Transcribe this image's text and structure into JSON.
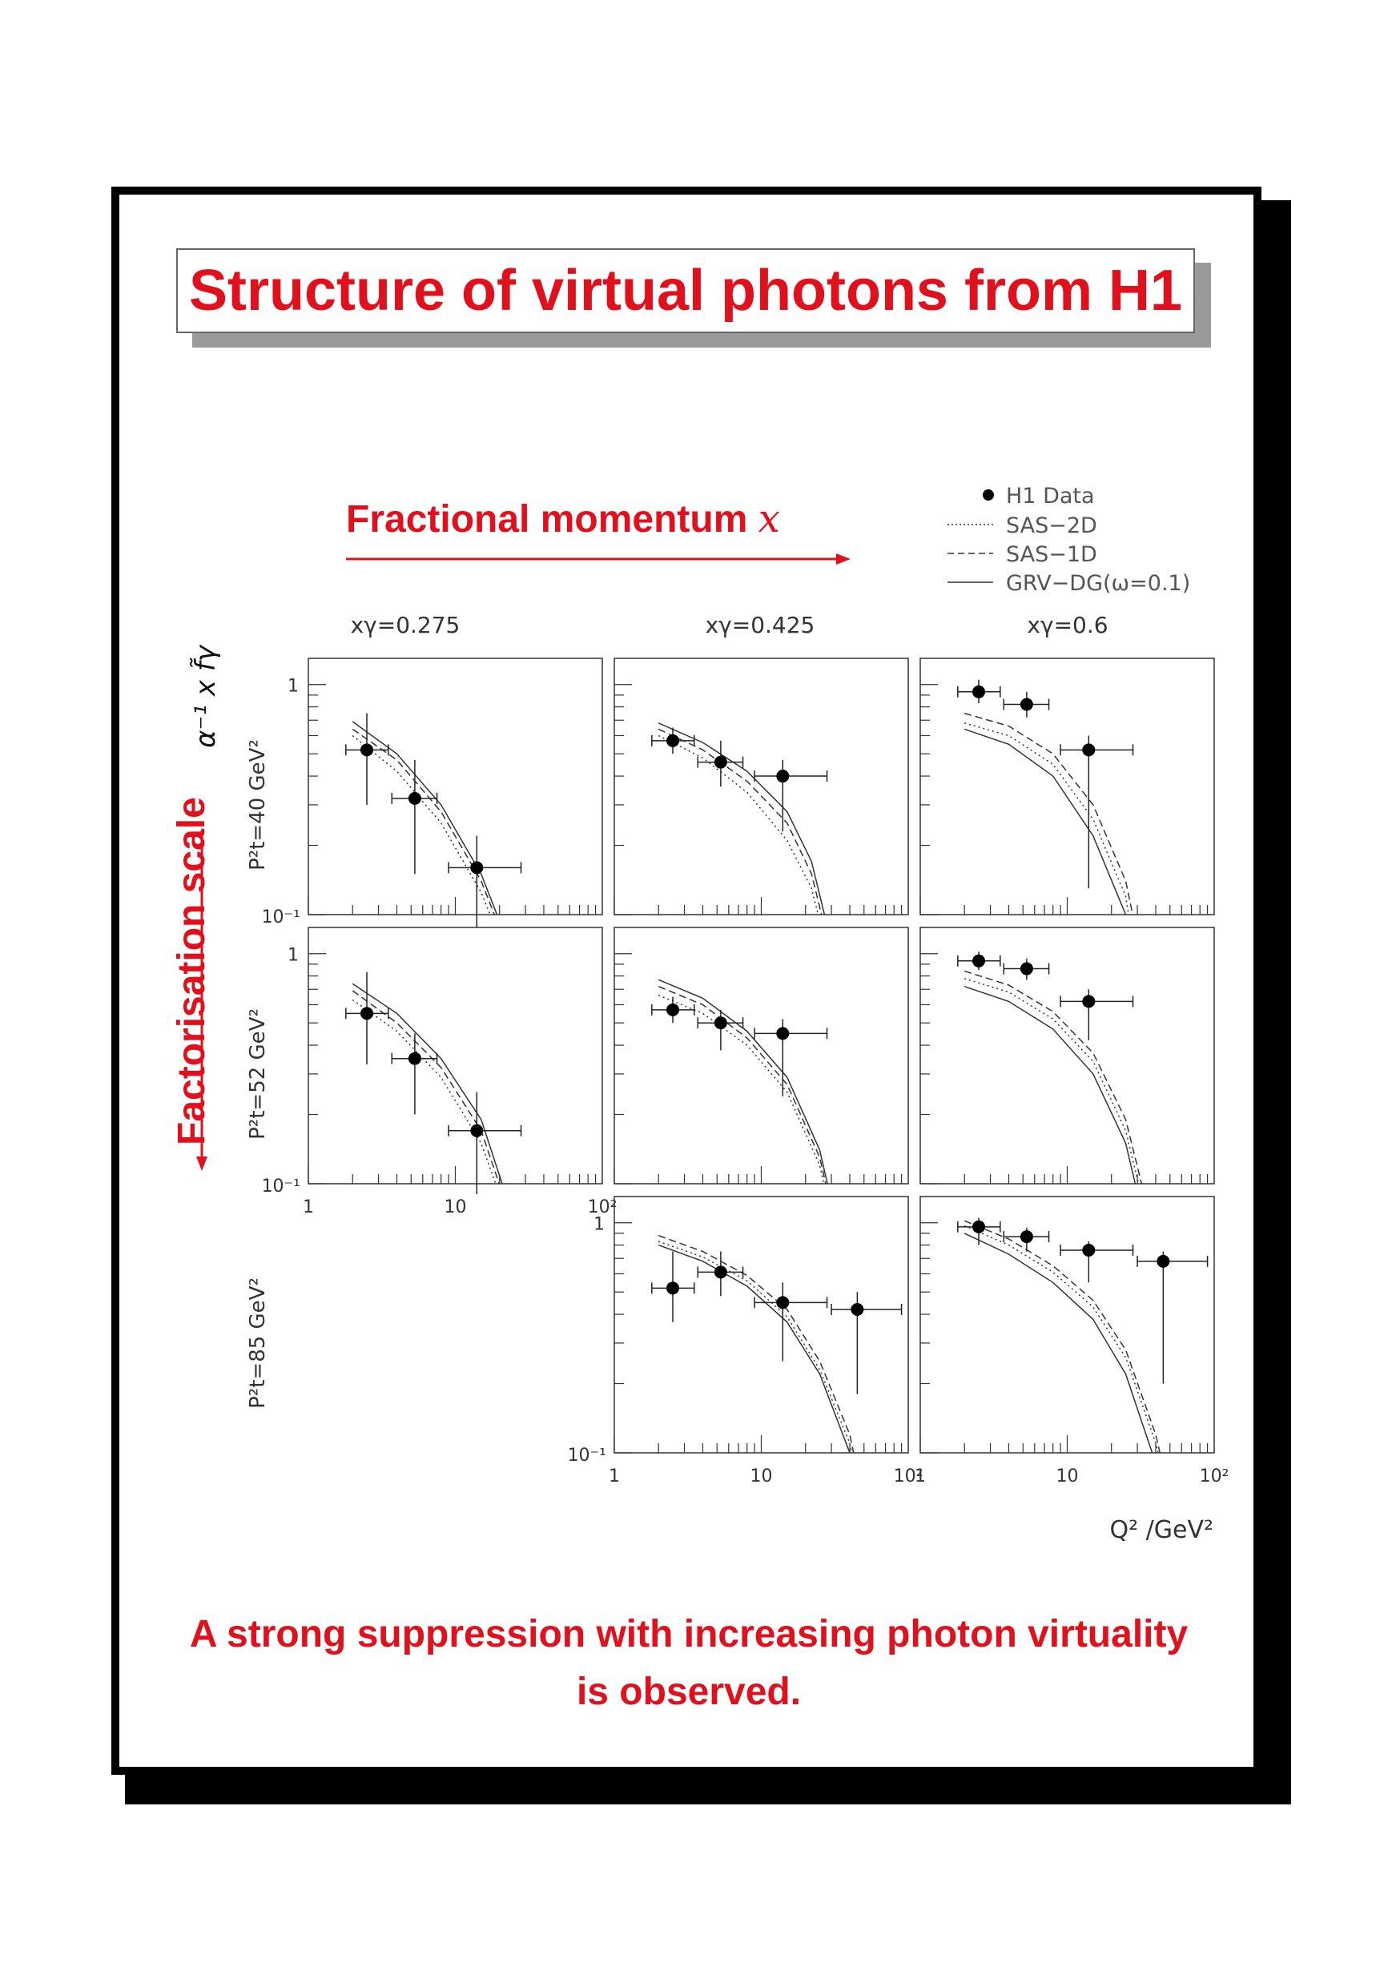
{
  "title": "Structure of virtual photons from H1",
  "x_direction_label": "Fractional momentum",
  "x_direction_symbol": "x",
  "y_direction_label": "Factorisation scale",
  "conclusion_line1": "A strong suppression with increasing photon virtuality",
  "conclusion_line2": "is observed.",
  "colors": {
    "accent": "#e0101c",
    "shadow": "#000000",
    "title_shadow": "#9a9a9a"
  },
  "chart_data": {
    "type": "scatter",
    "ylabel": "α⁻¹ x f̃γ",
    "xlabel": "Q² /GeV²",
    "x_scale": "log",
    "y_scale": "log",
    "xlim": [
      1,
      100
    ],
    "ylim": [
      0.1,
      1.3
    ],
    "x_tick_labels": [
      "1",
      "10",
      "10²"
    ],
    "y_tick_labels": [
      "1",
      "10⁻¹"
    ],
    "legend": {
      "position": "top-right",
      "entries": [
        {
          "label": "H1 Data",
          "style": "marker"
        },
        {
          "label": "SAS−2D",
          "style": "dotted"
        },
        {
          "label": "SAS−1D",
          "style": "dashed"
        },
        {
          "label": "GRV−DG(ω=0.1)",
          "style": "solid"
        }
      ]
    },
    "columns": [
      "xγ=0.275",
      "xγ=0.425",
      "xγ=0.6"
    ],
    "rows": [
      "P²t=40 GeV²",
      "P²t=52 GeV²",
      "P²t=85 GeV²"
    ],
    "panels": [
      {
        "row": 0,
        "col": 0,
        "points": [
          {
            "x": 2.5,
            "y": 0.52,
            "xlo": 1.8,
            "xhi": 3.5,
            "ylo": 0.3,
            "yhi": 0.75
          },
          {
            "x": 5.3,
            "y": 0.32,
            "xlo": 3.7,
            "xhi": 7.5,
            "ylo": 0.15,
            "yhi": 0.47
          },
          {
            "x": 14,
            "y": 0.16,
            "xlo": 9,
            "xhi": 28,
            "ylo": 0.088,
            "yhi": 0.22
          }
        ],
        "curves": {
          "grv": [
            [
              2,
              0.69
            ],
            [
              4,
              0.5
            ],
            [
              8,
              0.3
            ],
            [
              15,
              0.15
            ],
            [
              22,
              0.08
            ],
            [
              28,
              0.042
            ],
            [
              32,
              0.03
            ]
          ],
          "sas1d": [
            [
              2,
              0.64
            ],
            [
              4,
              0.47
            ],
            [
              8,
              0.28
            ],
            [
              15,
              0.14
            ],
            [
              22,
              0.075
            ],
            [
              29,
              0.036
            ],
            [
              32,
              0.03
            ]
          ],
          "sas2d": [
            [
              2,
              0.6
            ],
            [
              4,
              0.42
            ],
            [
              8,
              0.25
            ],
            [
              15,
              0.125
            ],
            [
              22,
              0.068
            ],
            [
              29,
              0.033
            ],
            [
              32,
              0.03
            ]
          ]
        }
      },
      {
        "row": 0,
        "col": 1,
        "points": [
          {
            "x": 2.5,
            "y": 0.57,
            "xlo": 1.8,
            "xhi": 3.5,
            "ylo": 0.5,
            "yhi": 0.65
          },
          {
            "x": 5.3,
            "y": 0.46,
            "xlo": 3.7,
            "xhi": 7.5,
            "ylo": 0.36,
            "yhi": 0.57
          },
          {
            "x": 14,
            "y": 0.4,
            "xlo": 9,
            "xhi": 28,
            "ylo": 0.23,
            "yhi": 0.47
          }
        ],
        "curves": {
          "grv": [
            [
              2,
              0.68
            ],
            [
              4,
              0.56
            ],
            [
              8,
              0.42
            ],
            [
              15,
              0.28
            ],
            [
              22,
              0.17
            ],
            [
              28,
              0.09
            ],
            [
              33,
              0.035
            ],
            [
              35,
              0.03
            ]
          ],
          "sas1d": [
            [
              2,
              0.64
            ],
            [
              4,
              0.52
            ],
            [
              8,
              0.38
            ],
            [
              15,
              0.25
            ],
            [
              22,
              0.15
            ],
            [
              28,
              0.08
            ],
            [
              33,
              0.033
            ],
            [
              35,
              0.03
            ]
          ],
          "sas2d": [
            [
              2,
              0.6
            ],
            [
              4,
              0.48
            ],
            [
              8,
              0.34
            ],
            [
              15,
              0.21
            ],
            [
              22,
              0.13
            ],
            [
              28,
              0.07
            ],
            [
              33,
              0.032
            ],
            [
              35,
              0.03
            ]
          ]
        }
      },
      {
        "row": 0,
        "col": 2,
        "points": [
          {
            "x": 2.5,
            "y": 0.93,
            "xlo": 1.8,
            "xhi": 3.5,
            "ylo": 0.83,
            "yhi": 1.05
          },
          {
            "x": 5.3,
            "y": 0.82,
            "xlo": 3.7,
            "xhi": 7.5,
            "ylo": 0.72,
            "yhi": 0.93
          },
          {
            "x": 14,
            "y": 0.52,
            "xlo": 9,
            "xhi": 28,
            "ylo": 0.13,
            "yhi": 0.6
          }
        ],
        "curves": {
          "grv": [
            [
              2,
              0.64
            ],
            [
              4,
              0.55
            ],
            [
              8,
              0.4
            ],
            [
              15,
              0.22
            ],
            [
              25,
              0.1
            ],
            [
              32,
              0.04
            ],
            [
              35,
              0.03
            ]
          ],
          "sas1d": [
            [
              2,
              0.75
            ],
            [
              4,
              0.66
            ],
            [
              8,
              0.5
            ],
            [
              15,
              0.3
            ],
            [
              25,
              0.14
            ],
            [
              35,
              0.05
            ],
            [
              38,
              0.03
            ]
          ],
          "sas2d": [
            [
              2,
              0.68
            ],
            [
              4,
              0.6
            ],
            [
              8,
              0.45
            ],
            [
              15,
              0.26
            ],
            [
              25,
              0.12
            ],
            [
              32,
              0.045
            ],
            [
              36,
              0.03
            ]
          ]
        }
      },
      {
        "row": 1,
        "col": 0,
        "points": [
          {
            "x": 2.5,
            "y": 0.55,
            "xlo": 1.8,
            "xhi": 3.5,
            "ylo": 0.33,
            "yhi": 0.83
          },
          {
            "x": 5.3,
            "y": 0.35,
            "xlo": 3.7,
            "xhi": 7.5,
            "ylo": 0.2,
            "yhi": 0.45
          },
          {
            "x": 14,
            "y": 0.17,
            "xlo": 9,
            "xhi": 28,
            "ylo": 0.09,
            "yhi": 0.25
          }
        ],
        "curves": {
          "grv": [
            [
              2,
              0.74
            ],
            [
              4,
              0.55
            ],
            [
              8,
              0.35
            ],
            [
              15,
              0.19
            ],
            [
              25,
              0.07
            ],
            [
              32,
              0.035
            ],
            [
              35,
              0.03
            ]
          ],
          "sas1d": [
            [
              2,
              0.69
            ],
            [
              4,
              0.5
            ],
            [
              8,
              0.32
            ],
            [
              15,
              0.17
            ],
            [
              25,
              0.065
            ],
            [
              32,
              0.033
            ],
            [
              35,
              0.03
            ]
          ],
          "sas2d": [
            [
              2,
              0.63
            ],
            [
              4,
              0.46
            ],
            [
              8,
              0.29
            ],
            [
              15,
              0.15
            ],
            [
              25,
              0.06
            ],
            [
              32,
              0.032
            ],
            [
              35,
              0.03
            ]
          ]
        }
      },
      {
        "row": 1,
        "col": 1,
        "points": [
          {
            "x": 2.5,
            "y": 0.57,
            "xlo": 1.8,
            "xhi": 3.5,
            "ylo": 0.5,
            "yhi": 0.65
          },
          {
            "x": 5.3,
            "y": 0.5,
            "xlo": 3.7,
            "xhi": 7.5,
            "ylo": 0.38,
            "yhi": 0.57
          },
          {
            "x": 14,
            "y": 0.45,
            "xlo": 9,
            "xhi": 28,
            "ylo": 0.24,
            "yhi": 0.52
          }
        ],
        "curves": {
          "grv": [
            [
              2,
              0.77
            ],
            [
              4,
              0.64
            ],
            [
              8,
              0.46
            ],
            [
              15,
              0.29
            ],
            [
              25,
              0.14
            ],
            [
              32,
              0.07
            ],
            [
              38,
              0.035
            ],
            [
              40,
              0.03
            ]
          ],
          "sas1d": [
            [
              2,
              0.72
            ],
            [
              4,
              0.6
            ],
            [
              8,
              0.43
            ],
            [
              15,
              0.27
            ],
            [
              25,
              0.13
            ],
            [
              32,
              0.065
            ],
            [
              38,
              0.033
            ],
            [
              40,
              0.03
            ]
          ],
          "sas2d": [
            [
              2,
              0.66
            ],
            [
              4,
              0.55
            ],
            [
              8,
              0.4
            ],
            [
              15,
              0.25
            ],
            [
              25,
              0.12
            ],
            [
              32,
              0.06
            ],
            [
              38,
              0.032
            ],
            [
              40,
              0.03
            ]
          ]
        }
      },
      {
        "row": 1,
        "col": 2,
        "points": [
          {
            "x": 2.5,
            "y": 0.93,
            "xlo": 1.8,
            "xhi": 3.5,
            "ylo": 0.85,
            "yhi": 1.02
          },
          {
            "x": 5.3,
            "y": 0.86,
            "xlo": 3.7,
            "xhi": 7.5,
            "ylo": 0.77,
            "yhi": 0.95
          },
          {
            "x": 14,
            "y": 0.62,
            "xlo": 9,
            "xhi": 28,
            "ylo": 0.42,
            "yhi": 0.7
          }
        ],
        "curves": {
          "grv": [
            [
              2,
              0.72
            ],
            [
              4,
              0.62
            ],
            [
              8,
              0.47
            ],
            [
              15,
              0.3
            ],
            [
              25,
              0.15
            ],
            [
              35,
              0.06
            ],
            [
              42,
              0.03
            ]
          ],
          "sas1d": [
            [
              2,
              0.84
            ],
            [
              4,
              0.73
            ],
            [
              8,
              0.56
            ],
            [
              15,
              0.37
            ],
            [
              25,
              0.19
            ],
            [
              35,
              0.08
            ],
            [
              45,
              0.03
            ]
          ],
          "sas2d": [
            [
              2,
              0.78
            ],
            [
              4,
              0.68
            ],
            [
              8,
              0.52
            ],
            [
              15,
              0.34
            ],
            [
              25,
              0.17
            ],
            [
              35,
              0.07
            ],
            [
              43,
              0.03
            ]
          ]
        }
      },
      {
        "row": 2,
        "col": 1,
        "points": [
          {
            "x": 2.5,
            "y": 0.52,
            "xlo": 1.8,
            "xhi": 3.5,
            "ylo": 0.37,
            "yhi": 0.75
          },
          {
            "x": 5.3,
            "y": 0.61,
            "xlo": 3.7,
            "xhi": 7.5,
            "ylo": 0.48,
            "yhi": 0.75
          },
          {
            "x": 14,
            "y": 0.45,
            "xlo": 9,
            "xhi": 28,
            "ylo": 0.25,
            "yhi": 0.55
          },
          {
            "x": 45,
            "y": 0.42,
            "xlo": 30,
            "xhi": 90,
            "ylo": 0.18,
            "yhi": 0.5
          }
        ],
        "curves": {
          "grv": [
            [
              2,
              0.8
            ],
            [
              4,
              0.68
            ],
            [
              8,
              0.53
            ],
            [
              15,
              0.37
            ],
            [
              25,
              0.22
            ],
            [
              40,
              0.1
            ],
            [
              55,
              0.04
            ],
            [
              60,
              0.03
            ]
          ],
          "sas1d": [
            [
              2,
              0.88
            ],
            [
              4,
              0.75
            ],
            [
              8,
              0.59
            ],
            [
              15,
              0.42
            ],
            [
              25,
              0.25
            ],
            [
              40,
              0.12
            ],
            [
              55,
              0.045
            ],
            [
              62,
              0.03
            ]
          ],
          "sas2d": [
            [
              2,
              0.83
            ],
            [
              4,
              0.71
            ],
            [
              8,
              0.56
            ],
            [
              15,
              0.39
            ],
            [
              25,
              0.23
            ],
            [
              40,
              0.11
            ],
            [
              55,
              0.042
            ],
            [
              61,
              0.03
            ]
          ]
        }
      },
      {
        "row": 2,
        "col": 2,
        "points": [
          {
            "x": 2.5,
            "y": 0.96,
            "xlo": 1.8,
            "xhi": 3.5,
            "ylo": 0.8,
            "yhi": 1.05
          },
          {
            "x": 5.3,
            "y": 0.87,
            "xlo": 3.7,
            "xhi": 7.5,
            "ylo": 0.75,
            "yhi": 0.95
          },
          {
            "x": 14,
            "y": 0.76,
            "xlo": 9,
            "xhi": 28,
            "ylo": 0.55,
            "yhi": 0.83
          },
          {
            "x": 45,
            "y": 0.68,
            "xlo": 30,
            "xhi": 90,
            "ylo": 0.2,
            "yhi": 0.75
          }
        ],
        "curves": {
          "grv": [
            [
              2,
              0.9
            ],
            [
              4,
              0.73
            ],
            [
              8,
              0.55
            ],
            [
              15,
              0.38
            ],
            [
              25,
              0.22
            ],
            [
              40,
              0.09
            ],
            [
              55,
              0.04
            ],
            [
              62,
              0.03
            ]
          ],
          "sas1d": [
            [
              2,
              1.02
            ],
            [
              4,
              0.85
            ],
            [
              8,
              0.65
            ],
            [
              15,
              0.46
            ],
            [
              25,
              0.28
            ],
            [
              40,
              0.12
            ],
            [
              55,
              0.05
            ],
            [
              65,
              0.03
            ]
          ],
          "sas2d": [
            [
              2,
              0.97
            ],
            [
              4,
              0.8
            ],
            [
              8,
              0.61
            ],
            [
              15,
              0.43
            ],
            [
              25,
              0.26
            ],
            [
              40,
              0.11
            ],
            [
              55,
              0.047
            ],
            [
              64,
              0.03
            ]
          ]
        }
      }
    ]
  }
}
